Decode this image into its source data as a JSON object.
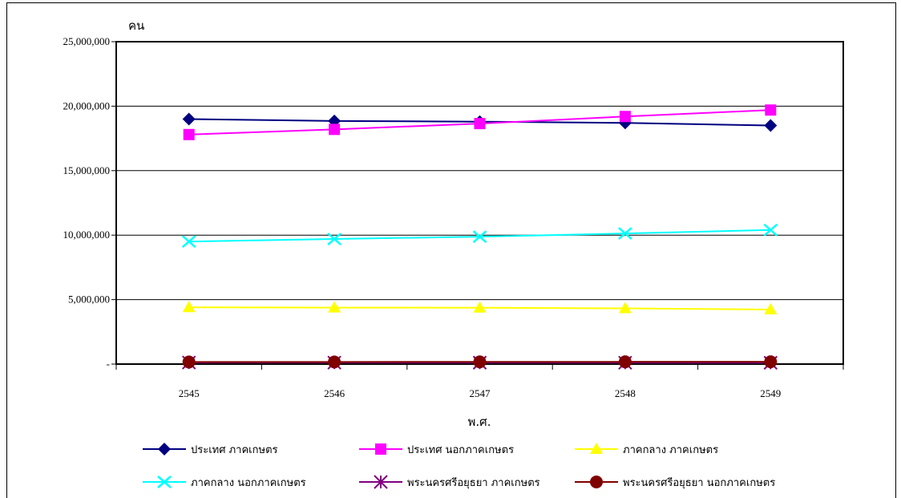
{
  "chart_data": {
    "type": "line",
    "ylabel": "คน",
    "xlabel": "พ.ศ.",
    "categories": [
      "2545",
      "2546",
      "2547",
      "2548",
      "2549"
    ],
    "ylim": [
      0,
      25000000
    ],
    "yticks": [
      0,
      5000000,
      10000000,
      15000000,
      20000000,
      25000000
    ],
    "ytick_labels": [
      "-",
      "5,000,000",
      "10,000,000",
      "15,000,000",
      "20,000,000",
      "25,000,000"
    ],
    "grid": "horizontal",
    "legend_position": "bottom",
    "series": [
      {
        "name": "ประเทศ ภาคเกษตร",
        "values": [
          19000000,
          18850000,
          18800000,
          18700000,
          18500000
        ],
        "color": "#000080",
        "marker": "diamond"
      },
      {
        "name": "ประเทศ นอกภาคเกษตร",
        "values": [
          17800000,
          18200000,
          18650000,
          19200000,
          19700000
        ],
        "color": "#ff00ff",
        "marker": "square"
      },
      {
        "name": "ภาคกลาง ภาคเกษตร",
        "values": [
          4400000,
          4380000,
          4370000,
          4320000,
          4230000
        ],
        "color": "#ffff00",
        "marker": "triangle"
      },
      {
        "name": "ภาคกลาง นอกภาคเกษตร",
        "values": [
          9500000,
          9700000,
          9880000,
          10130000,
          10400000
        ],
        "color": "#00ffff",
        "marker": "x"
      },
      {
        "name": "พระนครศรีอยุธยา ภาคเกษตร",
        "values": [
          120000,
          115000,
          110000,
          105000,
          100000
        ],
        "color": "#800080",
        "marker": "star"
      },
      {
        "name": "พระนครศรีอยุธยา นอกภาคเกษตร",
        "values": [
          160000,
          165000,
          170000,
          175000,
          180000
        ],
        "color": "#800000",
        "marker": "circle"
      }
    ]
  }
}
